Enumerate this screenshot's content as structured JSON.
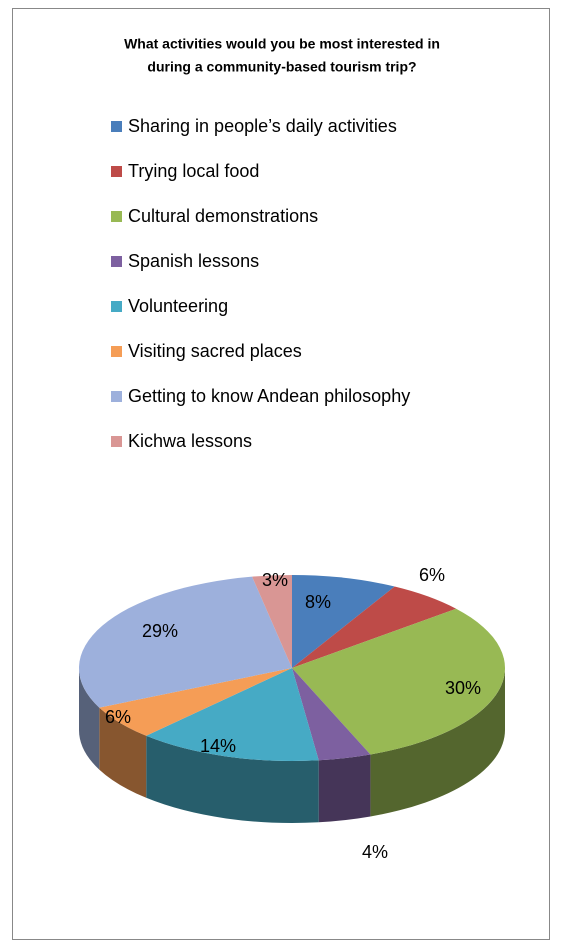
{
  "chart_data": {
    "type": "pie",
    "title": [
      "What activities would you be most interested in",
      "during a community-based tourism trip?"
    ],
    "categories": [
      "Sharing in people’s daily activities",
      "Trying local food",
      "Cultural demonstrations",
      "Spanish lessons",
      "Volunteering",
      "Visiting sacred places",
      "Getting to know Andean philosophy",
      "Kichwa lessons"
    ],
    "values": [
      8,
      6,
      30,
      4,
      14,
      6,
      29,
      3
    ],
    "value_labels": [
      "8%",
      "6%",
      "30%",
      "4%",
      "14%",
      "6%",
      "29%",
      "3%"
    ],
    "colors": [
      "#4a7ebb",
      "#be4b48",
      "#98b954",
      "#7d60a0",
      "#46aac5",
      "#f59d56",
      "#9db0dc",
      "#d99694"
    ],
    "legend": "top"
  }
}
